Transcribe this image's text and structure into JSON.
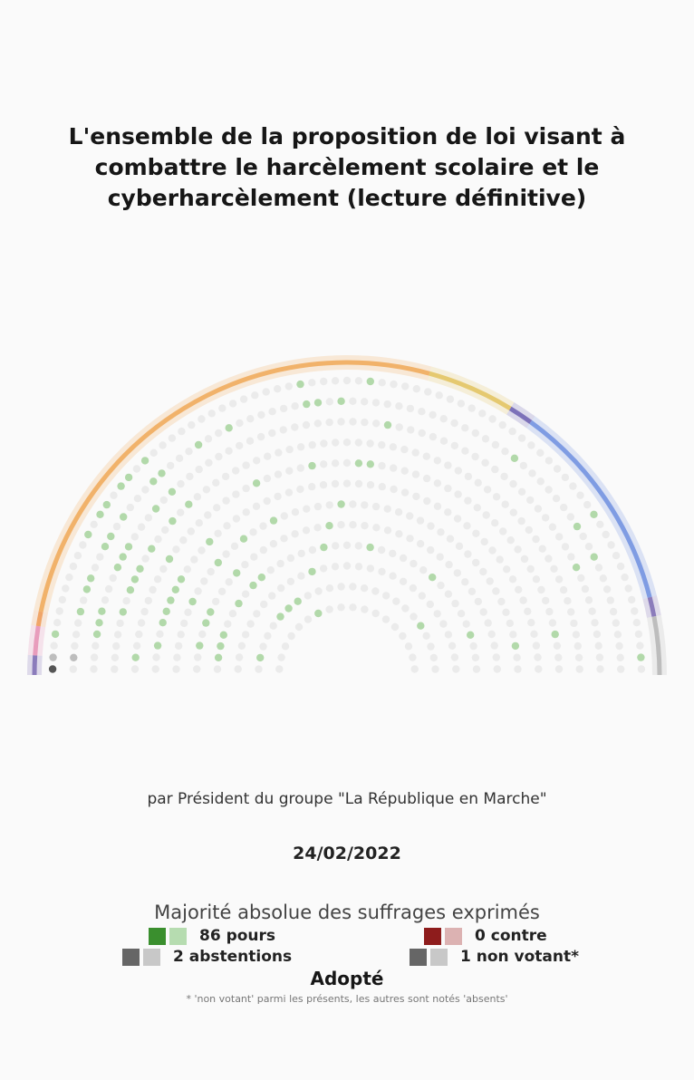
{
  "title": "L'ensemble de la proposition de loi visant à combattre le harcèlement scolaire et le cyberharcèlement (lecture définitive)",
  "author": "par Président du groupe \"La République en Marche\"",
  "date": "24/02/2022",
  "majority": "Majorité absolue des suffrages exprimés",
  "result": "Adopté",
  "footnote": "* 'non votant' parmi les présents, les autres sont notés 'absents'",
  "legend": {
    "pour": {
      "label": "86 pours",
      "dark": "#3a8f2e",
      "light": "#b6dcb0"
    },
    "contre": {
      "label": "0 contre",
      "dark": "#8e1c1c",
      "light": "#dcb2b2"
    },
    "abstention": {
      "label": "2 abstentions",
      "dark": "#666666",
      "light": "#c8c8c8"
    },
    "non_votant": {
      "label": "1 non votant*",
      "dark": "#666666",
      "light": "#c8c8c8"
    }
  },
  "chart_data": {
    "type": "hemicycle",
    "counts": {
      "pour": 86,
      "contre": 0,
      "abstention": 2,
      "non_votant": 1
    },
    "seat_colors": {
      "pour": "#b2d9aa",
      "abstention": "#bdbdbd",
      "non_votant": "#555555",
      "absent": "#ebebeb"
    },
    "group_arcs": [
      {
        "color": "#7d6bb3",
        "share": 0.02
      },
      {
        "color": "#e58fb4",
        "share": 0.03
      },
      {
        "color": "#ee9a55",
        "share": 0.015
      },
      {
        "color": "#f0a857",
        "share": 0.52
      },
      {
        "color": "#e2c25e",
        "share": 0.09
      },
      {
        "color": "#6b5fb0",
        "share": 0.025
      },
      {
        "color": "#6f8fdf",
        "share": 0.22
      },
      {
        "color": "#7d6bb3",
        "share": 0.02
      },
      {
        "color": "#b5b5b5",
        "share": 0.06
      }
    ]
  }
}
